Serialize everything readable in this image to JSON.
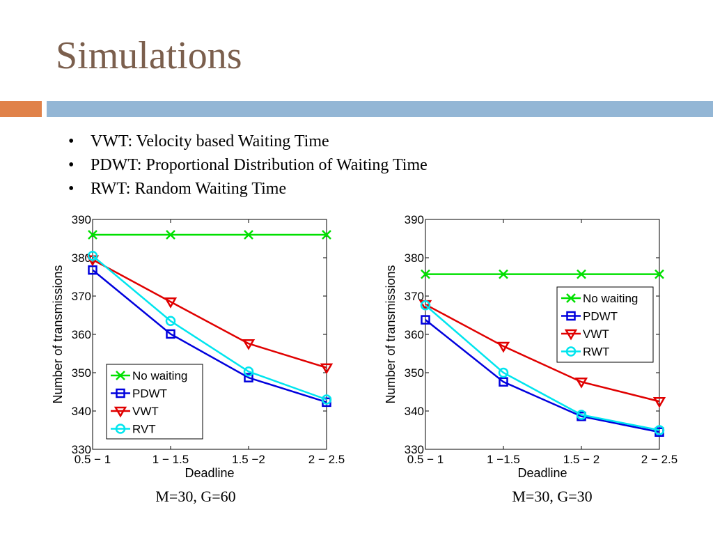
{
  "slide": {
    "title": "Simulations",
    "bullets": [
      "VWT: Velocity based Waiting Time",
      "PDWT: Proportional Distribution of Waiting Time",
      "RWT: Random Waiting Time"
    ]
  },
  "colors": {
    "title": "#7b5f4d",
    "accent_orange": "#e0824a",
    "accent_blue": "#93b6d5"
  },
  "chart_data": [
    {
      "type": "line",
      "caption": "M=30, G=60",
      "xlabel": "Deadline",
      "ylabel": "Number of transmissions",
      "categories": [
        "0.5 − 1",
        "1 − 1.5",
        "1.5 −2",
        "2 − 2.5"
      ],
      "ylim": [
        330,
        390
      ],
      "yticks": [
        330,
        340,
        350,
        360,
        370,
        380,
        390
      ],
      "legend_position": "bottom-left",
      "series": [
        {
          "name": "No waiting",
          "values": [
            386,
            386,
            386,
            386
          ],
          "color": "#00e000",
          "marker": "x"
        },
        {
          "name": "PDWT",
          "values": [
            376.8,
            360.1,
            348.7,
            342.3
          ],
          "color": "#0000dd",
          "marker": "square"
        },
        {
          "name": "VWT",
          "values": [
            379.5,
            368.5,
            357.6,
            351.3
          ],
          "color": "#e00000",
          "marker": "triangle-down"
        },
        {
          "name": "RVT",
          "values": [
            380.5,
            363.5,
            350.3,
            343
          ],
          "color": "#00e5ee",
          "marker": "circle"
        }
      ]
    },
    {
      "type": "line",
      "caption": "M=30, G=30",
      "xlabel": "Deadline",
      "ylabel": "Number of transmissions",
      "categories": [
        "0.5 − 1",
        "1 −1.5",
        "1.5 − 2",
        "2 − 2.5"
      ],
      "ylim": [
        330,
        390
      ],
      "yticks": [
        330,
        340,
        350,
        360,
        370,
        380,
        390
      ],
      "legend_position": "right",
      "series": [
        {
          "name": "No waiting",
          "values": [
            375.7,
            375.7,
            375.7,
            375.7
          ],
          "color": "#00e000",
          "marker": "x"
        },
        {
          "name": "PDWT",
          "values": [
            363.8,
            347.6,
            338.6,
            334.5
          ],
          "color": "#0000dd",
          "marker": "square"
        },
        {
          "name": "VWT",
          "values": [
            367.8,
            356.9,
            347.6,
            342.5
          ],
          "color": "#e00000",
          "marker": "triangle-down"
        },
        {
          "name": "RWT",
          "values": [
            367.6,
            350,
            339,
            335
          ],
          "color": "#00e5ee",
          "marker": "circle"
        }
      ]
    }
  ]
}
